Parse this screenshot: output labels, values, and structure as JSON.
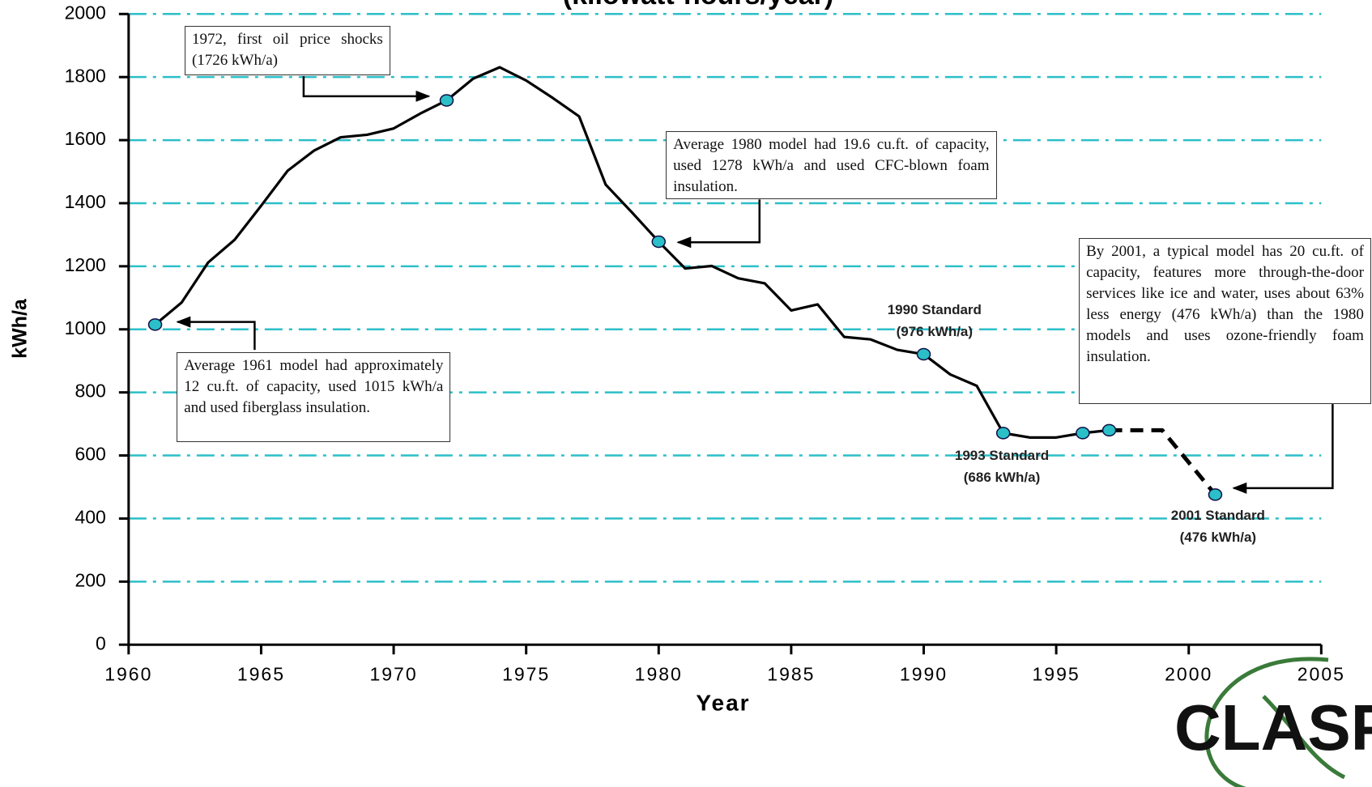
{
  "chart_data": {
    "type": "line",
    "title": "(kilowatt-hours/year)",
    "xlabel": "Year",
    "ylabel": "kWh/a",
    "xlim": [
      1960,
      2005
    ],
    "xticks": [
      1960,
      1965,
      1970,
      1975,
      1980,
      1985,
      1990,
      1995,
      2000,
      2005
    ],
    "ylim": [
      0,
      2000
    ],
    "yticks": [
      0,
      200,
      400,
      600,
      800,
      1000,
      1200,
      1400,
      1600,
      1800,
      2000
    ],
    "grid": true,
    "grid_color": "#2bbfc8",
    "series": [
      {
        "style": "solid",
        "color": "#000000",
        "x": [
          1961,
          1962,
          1963,
          1964,
          1965,
          1966,
          1967,
          1968,
          1969,
          1970,
          1971,
          1972,
          1973,
          1974,
          1975,
          1976,
          1977,
          1978,
          1979,
          1980,
          1981,
          1982,
          1983,
          1984,
          1985,
          1986,
          1987,
          1988,
          1989,
          1990,
          1991,
          1992,
          1993,
          1994,
          1995,
          1996,
          1997
        ],
        "values": [
          1015,
          1085,
          1212,
          1284,
          1392,
          1503,
          1567,
          1609,
          1617,
          1637,
          1684,
          1726,
          1795,
          1831,
          1789,
          1734,
          1675,
          1459,
          1370,
          1278,
          1193,
          1201,
          1162,
          1146,
          1060,
          1079,
          976,
          968,
          935,
          921,
          857,
          821,
          671,
          657,
          657,
          671,
          680
        ]
      },
      {
        "style": "dashed",
        "color": "#000000",
        "x": [
          1997,
          1999,
          2001
        ],
        "values": [
          680,
          680,
          476
        ]
      },
      {
        "style": "markers",
        "color": "#2bbfc8",
        "x": [
          1961,
          1972,
          1980,
          1990,
          1993,
          1996,
          1997,
          2001
        ],
        "values": [
          1015,
          1726,
          1278,
          921,
          671,
          671,
          680,
          476
        ]
      }
    ],
    "annotations": [
      "1972, first oil price shocks (1726 kWh/a)",
      "Average 1980 model had 19.6 cu.ft. of capacity, used 1278 kWh/a and used CFC-blown foam insulation.",
      "Average 1961 model had approximately 12 cu.ft. of capacity, used 1015 kWh/a and used fiberglass insulation.",
      "By 2001, a typical model has 20 cu.ft. of capacity, features more through-the-door services like ice and water, uses about 63% less energy (476 kWh/a) than the 1980 models and uses ozone-friendly foam insulation."
    ],
    "standards": [
      [
        "1990 Standard",
        "(976 kWh/a)"
      ],
      [
        "1993 Standard",
        "(686 kWh/a)"
      ],
      [
        "2001 Standard",
        "(476 kWh/a)"
      ]
    ],
    "logo": "CLASP"
  }
}
